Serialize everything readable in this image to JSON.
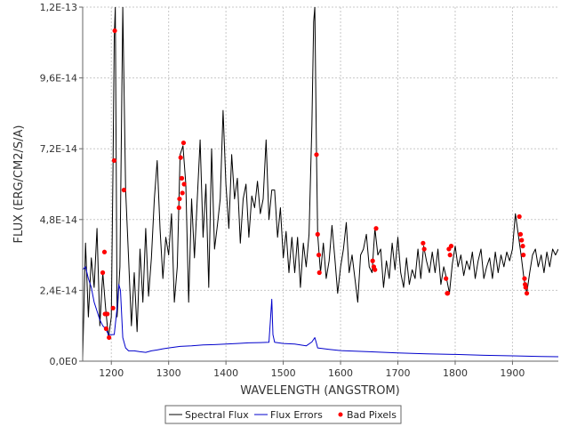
{
  "chart_data": {
    "type": "line",
    "title": "",
    "xlabel": "WAVELENGTH (ANGSTROM)",
    "ylabel": "FLUX (ERG/CM2/S/A)",
    "xlim": [
      1150,
      1980
    ],
    "ylim": [
      0,
      1.2e-13
    ],
    "grid": true,
    "legend_position": "bottom-center",
    "x_ticks": [
      {
        "value": 1200,
        "label": "1200"
      },
      {
        "value": 1300,
        "label": "1300"
      },
      {
        "value": 1400,
        "label": "1400"
      },
      {
        "value": 1500,
        "label": "1500"
      },
      {
        "value": 1600,
        "label": "1600"
      },
      {
        "value": 1700,
        "label": "1700"
      },
      {
        "value": 1800,
        "label": "1800"
      },
      {
        "value": 1900,
        "label": "1900"
      }
    ],
    "y_ticks": [
      {
        "value": 0,
        "label": "0,0E0"
      },
      {
        "value": 2.4e-14,
        "label": "2,4E-14"
      },
      {
        "value": 4.8e-14,
        "label": "4,8E-14"
      },
      {
        "value": 7.2e-14,
        "label": "7,2E-14"
      },
      {
        "value": 9.6e-14,
        "label": "9,6E-14"
      },
      {
        "value": 1.2e-13,
        "label": "1,2E-13"
      }
    ],
    "series": [
      {
        "name": "Spectral Flux",
        "color": "#000000",
        "x": [
          1150,
          1155,
          1160,
          1165,
          1170,
          1175,
          1180,
          1185,
          1190,
          1195,
          1200,
          1203,
          1205,
          1207,
          1210,
          1215,
          1220,
          1225,
          1230,
          1235,
          1240,
          1245,
          1250,
          1255,
          1260,
          1265,
          1270,
          1275,
          1280,
          1285,
          1290,
          1295,
          1300,
          1305,
          1310,
          1315,
          1320,
          1325,
          1330,
          1335,
          1340,
          1345,
          1350,
          1355,
          1360,
          1365,
          1370,
          1375,
          1380,
          1385,
          1390,
          1395,
          1400,
          1405,
          1410,
          1415,
          1420,
          1425,
          1430,
          1435,
          1440,
          1445,
          1450,
          1455,
          1460,
          1465,
          1470,
          1475,
          1480,
          1485,
          1490,
          1495,
          1500,
          1505,
          1510,
          1515,
          1520,
          1525,
          1530,
          1535,
          1540,
          1545,
          1550,
          1553,
          1555,
          1558,
          1560,
          1565,
          1570,
          1575,
          1580,
          1585,
          1590,
          1595,
          1600,
          1605,
          1610,
          1615,
          1620,
          1625,
          1630,
          1635,
          1640,
          1645,
          1650,
          1655,
          1660,
          1665,
          1670,
          1675,
          1680,
          1685,
          1690,
          1695,
          1700,
          1705,
          1710,
          1715,
          1720,
          1725,
          1730,
          1735,
          1740,
          1745,
          1750,
          1755,
          1760,
          1765,
          1770,
          1775,
          1780,
          1785,
          1790,
          1795,
          1800,
          1805,
          1810,
          1815,
          1820,
          1825,
          1830,
          1835,
          1840,
          1845,
          1850,
          1855,
          1860,
          1865,
          1870,
          1875,
          1880,
          1885,
          1890,
          1895,
          1900,
          1905,
          1910,
          1915,
          1920,
          1925,
          1930,
          1935,
          1940,
          1945,
          1950,
          1955,
          1960,
          1965,
          1970,
          1975,
          1980
        ],
        "values": [
          1e-15,
          4e-14,
          1.5e-14,
          3.5e-14,
          2.5e-14,
          4.5e-14,
          1.2e-14,
          3e-14,
          1.8e-14,
          8e-15,
          1.5e-14,
          6.8e-14,
          1.1e-13,
          1.2e-13,
          1.5e-14,
          3.2e-14,
          1.2e-13,
          5.8e-14,
          3.5e-14,
          1.2e-14,
          3e-14,
          1e-14,
          3.8e-14,
          2e-14,
          4.5e-14,
          2.2e-14,
          3.5e-14,
          5.5e-14,
          6.8e-14,
          4.5e-14,
          2.8e-14,
          4.2e-14,
          3.6e-14,
          5e-14,
          2e-14,
          3.2e-14,
          7e-14,
          7.3e-14,
          6e-14,
          2e-14,
          5.5e-14,
          3.5e-14,
          5.5e-14,
          7.5e-14,
          4.2e-14,
          6e-14,
          2.5e-14,
          7.2e-14,
          3.8e-14,
          4.6e-14,
          5.5e-14,
          8.5e-14,
          6e-14,
          4.5e-14,
          7e-14,
          5.5e-14,
          6.2e-14,
          4e-14,
          5.5e-14,
          6e-14,
          4.2e-14,
          5.6e-14,
          5.2e-14,
          6.1e-14,
          5e-14,
          5.5e-14,
          7.5e-14,
          4.8e-14,
          5.8e-14,
          5.8e-14,
          4.2e-14,
          5.2e-14,
          3.5e-14,
          4.4e-14,
          3e-14,
          4.2e-14,
          3e-14,
          4.2e-14,
          2.5e-14,
          4e-14,
          3.2e-14,
          4.3e-14,
          8e-14,
          1.15e-13,
          1.2e-13,
          7e-14,
          4.3e-14,
          3e-14,
          4e-14,
          2.8e-14,
          3.4e-14,
          4.6e-14,
          3.5e-14,
          2.3e-14,
          3.2e-14,
          3.8e-14,
          4.7e-14,
          3e-14,
          3.6e-14,
          2.8e-14,
          2e-14,
          3.6e-14,
          3.8e-14,
          4.3e-14,
          3.2e-14,
          3e-14,
          4.5e-14,
          3.6e-14,
          3.8e-14,
          2.5e-14,
          3.4e-14,
          2.8e-14,
          4e-14,
          3.1e-14,
          4.2e-14,
          3e-14,
          2.5e-14,
          3.5e-14,
          2.6e-14,
          3.1e-14,
          2.8e-14,
          3.8e-14,
          2.8e-14,
          3.9e-14,
          3.4e-14,
          3e-14,
          3.7e-14,
          3e-14,
          3.8e-14,
          2.6e-14,
          3.2e-14,
          2.8e-14,
          2.3e-14,
          3.3e-14,
          3.9e-14,
          3.2e-14,
          3.6e-14,
          2.9e-14,
          3.4e-14,
          3.1e-14,
          3.7e-14,
          2.8e-14,
          3.4e-14,
          3.8e-14,
          2.8e-14,
          3.2e-14,
          3.5e-14,
          2.8e-14,
          3.7e-14,
          3e-14,
          3.6e-14,
          3.2e-14,
          3.7e-14,
          3.4e-14,
          3.8e-14,
          5e-14,
          4.3e-14,
          3.6e-14,
          2.8e-14,
          2.3e-14,
          3e-14,
          3.6e-14,
          3.8e-14,
          3.2e-14,
          3.6e-14,
          3e-14,
          3.7e-14,
          3.2e-14,
          3.8e-14,
          3.6e-14,
          3.8e-14
        ]
      },
      {
        "name": "Flux Errors",
        "color": "#0000cc",
        "x": [
          1150,
          1155,
          1160,
          1165,
          1170,
          1175,
          1180,
          1185,
          1190,
          1195,
          1200,
          1205,
          1210,
          1213,
          1216,
          1220,
          1225,
          1230,
          1240,
          1250,
          1260,
          1270,
          1280,
          1290,
          1300,
          1320,
          1340,
          1360,
          1380,
          1400,
          1420,
          1440,
          1460,
          1475,
          1478,
          1480,
          1482,
          1485,
          1500,
          1520,
          1540,
          1550,
          1555,
          1558,
          1560,
          1580,
          1600,
          1650,
          1700,
          1750,
          1800,
          1850,
          1900,
          1950,
          1980
        ],
        "values": [
          3.1e-14,
          3.2e-14,
          2.8e-14,
          2.5e-14,
          2e-14,
          1.7e-14,
          1.4e-14,
          1.2e-14,
          1.1e-14,
          9e-15,
          9e-15,
          9e-15,
          1.8e-14,
          2.6e-14,
          2.4e-14,
          8e-15,
          4.5e-15,
          3.5e-15,
          3.5e-15,
          3.2e-15,
          3e-15,
          3.5e-15,
          3.8e-15,
          4.2e-15,
          4.5e-15,
          5e-15,
          5.2e-15,
          5.5e-15,
          5.6e-15,
          5.8e-15,
          6e-15,
          6.2e-15,
          6.3e-15,
          6.4e-15,
          1.5e-14,
          2.1e-14,
          9e-15,
          6.4e-15,
          6e-15,
          5.8e-15,
          5.2e-15,
          6.5e-15,
          8e-15,
          6e-15,
          4.5e-15,
          4e-15,
          3.6e-15,
          3.2e-15,
          2.8e-15,
          2.5e-15,
          2.3e-15,
          2e-15,
          1.8e-15,
          1.6e-15,
          1.5e-15
        ]
      }
    ],
    "bad_pixels": {
      "name": "Bad Pixels",
      "color": "#ff0000",
      "points": [
        {
          "x": 1185,
          "y": 3e-14
        },
        {
          "x": 1188,
          "y": 3.7e-14
        },
        {
          "x": 1189,
          "y": 1.6e-14
        },
        {
          "x": 1191,
          "y": 1.1e-14
        },
        {
          "x": 1193,
          "y": 1.6e-14
        },
        {
          "x": 1196,
          "y": 8e-15
        },
        {
          "x": 1203,
          "y": 1.8e-14
        },
        {
          "x": 1205,
          "y": 6.8e-14
        },
        {
          "x": 1206,
          "y": 1.12e-13
        },
        {
          "x": 1222,
          "y": 5.8e-14
        },
        {
          "x": 1318,
          "y": 5.2e-14
        },
        {
          "x": 1319,
          "y": 5.5e-14
        },
        {
          "x": 1321,
          "y": 6.9e-14
        },
        {
          "x": 1323,
          "y": 6.2e-14
        },
        {
          "x": 1324,
          "y": 5.7e-14
        },
        {
          "x": 1326,
          "y": 7.4e-14
        },
        {
          "x": 1327,
          "y": 6e-14
        },
        {
          "x": 1558,
          "y": 7e-14
        },
        {
          "x": 1560,
          "y": 4.3e-14
        },
        {
          "x": 1562,
          "y": 3.6e-14
        },
        {
          "x": 1563,
          "y": 3e-14
        },
        {
          "x": 1656,
          "y": 3.4e-14
        },
        {
          "x": 1658,
          "y": 3.2e-14
        },
        {
          "x": 1660,
          "y": 3.1e-14
        },
        {
          "x": 1662,
          "y": 4.5e-14
        },
        {
          "x": 1744,
          "y": 4e-14
        },
        {
          "x": 1746,
          "y": 3.8e-14
        },
        {
          "x": 1784,
          "y": 2.8e-14
        },
        {
          "x": 1786,
          "y": 2.3e-14
        },
        {
          "x": 1787,
          "y": 2.3e-14
        },
        {
          "x": 1789,
          "y": 3.8e-14
        },
        {
          "x": 1791,
          "y": 3.6e-14
        },
        {
          "x": 1793,
          "y": 3.9e-14
        },
        {
          "x": 1912,
          "y": 4.9e-14
        },
        {
          "x": 1914,
          "y": 4.3e-14
        },
        {
          "x": 1916,
          "y": 4.1e-14
        },
        {
          "x": 1918,
          "y": 3.9e-14
        },
        {
          "x": 1919,
          "y": 3.6e-14
        },
        {
          "x": 1921,
          "y": 2.8e-14
        },
        {
          "x": 1922,
          "y": 2.6e-14
        },
        {
          "x": 1923,
          "y": 2.5e-14
        },
        {
          "x": 1925,
          "y": 2.3e-14
        }
      ]
    }
  }
}
